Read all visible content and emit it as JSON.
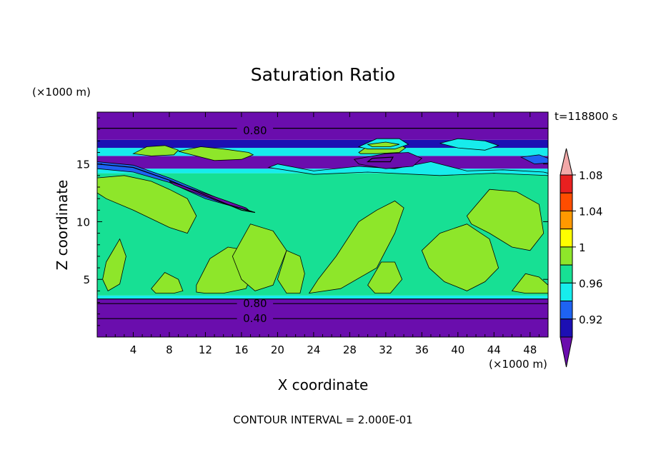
{
  "chart_data": {
    "type": "heatmap",
    "title": "Saturation Ratio",
    "time_label": "t=118800 s",
    "xlabel": "X coordinate",
    "ylabel": "Z coordinate",
    "x_unit": "(×1000 m)",
    "y_unit": "(×1000 m)",
    "xlim": [
      0,
      50
    ],
    "ylim": [
      0,
      19.5
    ],
    "x_ticks": [
      4,
      8,
      12,
      16,
      20,
      24,
      28,
      32,
      36,
      40,
      44,
      48
    ],
    "y_ticks": [
      5,
      10,
      15
    ],
    "contour_labels": [
      {
        "text": "0.80",
        "x": 17.5,
        "z": 17.9
      },
      {
        "text": "0.80",
        "x": 17.5,
        "z": 2.9
      },
      {
        "text": "0.40",
        "x": 17.5,
        "z": 1.6
      }
    ],
    "footer": "CONTOUR INTERVAL = 2.000E-01",
    "colorbar": {
      "labels": [
        "1.08",
        "1.04",
        "1",
        "0.96",
        "0.92"
      ],
      "levels": [
        0.9,
        0.92,
        0.94,
        0.96,
        0.98,
        1.0,
        1.02,
        1.04,
        1.06,
        1.08,
        1.1
      ],
      "colors": [
        "#6a0dad",
        "#1c0fb3",
        "#1e63f2",
        "#17ecec",
        "#17e094",
        "#8ee62a",
        "#ffff00",
        "#ff9900",
        "#ff4d00",
        "#e82020",
        "#f2a8a8"
      ]
    },
    "bands": [
      {
        "z0": 0.0,
        "z1": 3.3,
        "level": "< 0.90",
        "color": "#6a0dad"
      },
      {
        "z0": 3.3,
        "z1": 3.6,
        "level": "0.96",
        "color": "#17ecec"
      },
      {
        "z0": 3.6,
        "z1": 14.2,
        "level": "0.98",
        "color": "#17e094"
      },
      {
        "z0": 14.2,
        "z1": 14.6,
        "level": "0.96",
        "color": "#17ecec"
      },
      {
        "z0": 14.6,
        "z1": 15.7,
        "level": "< 0.90",
        "color": "#6a0dad"
      },
      {
        "z0": 15.7,
        "z1": 16.4,
        "level": "0.96",
        "color": "#17ecec"
      },
      {
        "z0": 16.4,
        "z1": 17.1,
        "level": "0.92",
        "color": "#1c0fb3"
      },
      {
        "z0": 17.1,
        "z1": 19.5,
        "level": "< 0.90",
        "color": "#6a0dad"
      }
    ],
    "patches": [
      {
        "x": [
          0,
          3,
          6,
          8,
          10,
          11,
          10,
          8,
          4,
          1,
          0
        ],
        "z": [
          13.8,
          14.0,
          13.5,
          12.8,
          12.0,
          10.5,
          9.0,
          9.5,
          11.0,
          12.0,
          12.5
        ],
        "color": "#8ee62a"
      },
      {
        "x": [
          23.5,
          27,
          31,
          33,
          34,
          33,
          31,
          29,
          26.5,
          24.5
        ],
        "z": [
          3.8,
          4.2,
          6.0,
          9.0,
          11.2,
          11.8,
          11.0,
          10.0,
          7.0,
          5.0
        ],
        "color": "#8ee62a"
      },
      {
        "x": [
          36,
          38,
          41,
          43.5,
          44.5,
          43,
          41,
          38.5,
          36.8
        ],
        "z": [
          7.5,
          9.0,
          9.8,
          8.5,
          6.0,
          4.8,
          4.0,
          4.8,
          6.0
        ],
        "color": "#8ee62a"
      },
      {
        "x": [
          41,
          43.5,
          46.5,
          49,
          49.5,
          48,
          46,
          43.5,
          41.5
        ],
        "z": [
          10.5,
          12.8,
          12.6,
          11.5,
          9.0,
          7.5,
          7.8,
          9.0,
          9.8
        ],
        "color": "#8ee62a"
      },
      {
        "x": [
          1,
          2.5,
          3.2,
          2.5,
          1.2,
          0.6
        ],
        "z": [
          6.5,
          8.5,
          7.0,
          4.6,
          4.0,
          5.0
        ],
        "color": "#8ee62a"
      },
      {
        "x": [
          6,
          7.5,
          9,
          9.5,
          8.5,
          6.5
        ],
        "z": [
          4.2,
          5.6,
          5.0,
          4.0,
          3.8,
          3.8
        ],
        "color": "#8ee62a"
      },
      {
        "x": [
          11,
          12.5,
          14.5,
          16,
          17.5,
          16.5,
          14,
          12,
          11
        ],
        "z": [
          4.5,
          6.8,
          7.8,
          7.6,
          6.0,
          4.2,
          3.8,
          3.8,
          3.9
        ],
        "color": "#8ee62a"
      },
      {
        "x": [
          15,
          17,
          19.5,
          21,
          19.5,
          17.5,
          16
        ],
        "z": [
          7.0,
          9.8,
          9.2,
          7.5,
          4.5,
          4.0,
          5.0
        ],
        "color": "#8ee62a"
      },
      {
        "x": [
          20,
          21,
          22.5,
          23,
          22.5,
          21
        ],
        "z": [
          5.0,
          7.5,
          7.0,
          5.5,
          3.8,
          3.8
        ],
        "color": "#8ee62a"
      },
      {
        "x": [
          30,
          31.5,
          33,
          33.8,
          32.5,
          30.8
        ],
        "z": [
          4.5,
          6.5,
          6.5,
          5.0,
          3.8,
          3.8
        ],
        "color": "#8ee62a"
      },
      {
        "x": [
          46,
          47.5,
          49,
          50,
          50,
          47.5
        ],
        "z": [
          4.0,
          5.5,
          5.2,
          4.5,
          3.8,
          3.8
        ],
        "color": "#8ee62a"
      },
      {
        "x": [
          11,
          13,
          16,
          17.3,
          16.8,
          14,
          11.5,
          9
        ],
        "z": [
          15.7,
          15.3,
          15.4,
          15.8,
          16.0,
          16.3,
          16.5,
          16.1
        ],
        "color": "#8ee62a"
      },
      {
        "x": [
          29,
          30.5,
          33,
          34.2,
          33.5,
          31,
          29.2
        ],
        "z": [
          16.0,
          16.8,
          16.9,
          16.4,
          16.0,
          15.9,
          15.9
        ],
        "color": "#8ee62a"
      },
      {
        "x": [
          4,
          5.5,
          7.5,
          9,
          8.5,
          6
        ],
        "z": [
          15.9,
          16.5,
          16.6,
          16.2,
          15.8,
          15.7
        ],
        "color": "#8ee62a"
      },
      {
        "x": [
          0,
          4,
          8,
          12,
          16,
          17.5,
          16.5,
          12,
          8,
          4,
          0
        ],
        "z": [
          15.2,
          14.9,
          13.8,
          12.5,
          11.2,
          10.8,
          11.0,
          12.0,
          13.4,
          14.3,
          14.6
        ],
        "color": "#1e63f2"
      },
      {
        "x": [
          8,
          11,
          14,
          16.5,
          16.8,
          14,
          10.5,
          8.5
        ],
        "z": [
          13.5,
          12.7,
          11.9,
          11.2,
          11.0,
          11.6,
          12.6,
          13.2
        ],
        "color": "#6a0dad"
      },
      {
        "x": [
          20,
          24,
          29,
          33,
          37,
          41,
          45,
          49.5,
          50,
          50,
          44,
          38,
          30,
          24,
          19
        ],
        "z": [
          15.0,
          14.4,
          14.8,
          14.6,
          15.2,
          14.4,
          14.5,
          14.3,
          14.2,
          14.0,
          14.2,
          14.0,
          14.3,
          14.1,
          14.7
        ],
        "color": "#17ecec"
      },
      {
        "x": [
          29,
          31,
          33.5,
          34.5,
          33,
          30
        ],
        "z": [
          16.5,
          17.2,
          17.2,
          16.7,
          16.3,
          16.3
        ],
        "color": "#17ecec"
      },
      {
        "x": [
          30,
          32,
          33.5,
          32.5,
          30.5
        ],
        "z": [
          16.7,
          16.9,
          16.7,
          16.5,
          16.5
        ],
        "color": "#8ee62a"
      },
      {
        "x": [
          28.5,
          32,
          34.5,
          36,
          35,
          32,
          29
        ],
        "z": [
          15.4,
          15.9,
          16.0,
          15.5,
          14.8,
          14.6,
          15.0
        ],
        "color": "#6a0dad"
      },
      {
        "x": [
          38,
          40,
          43,
          44.5,
          43,
          40
        ],
        "z": [
          16.8,
          17.2,
          17.0,
          16.6,
          16.2,
          16.4
        ],
        "color": "#17ecec"
      },
      {
        "x": [
          47,
          49,
          50,
          50,
          48.5
        ],
        "z": [
          15.6,
          15.8,
          15.5,
          15.1,
          15.0
        ],
        "color": "#1e63f2"
      }
    ],
    "contour_lines": [
      {
        "x": [
          0,
          15.5
        ],
        "z": [
          18.1,
          18.1
        ]
      },
      {
        "x": [
          19.5,
          50
        ],
        "z": [
          18.1,
          18.1
        ]
      },
      {
        "x": [
          0,
          15.5
        ],
        "z": [
          2.9,
          2.9
        ]
      },
      {
        "x": [
          19.5,
          50
        ],
        "z": [
          2.9,
          2.9
        ]
      },
      {
        "x": [
          0,
          15.5
        ],
        "z": [
          1.6,
          1.6
        ]
      },
      {
        "x": [
          19.5,
          50
        ],
        "z": [
          1.6,
          1.6
        ]
      },
      {
        "x": [
          0,
          50
        ],
        "z": [
          3.3,
          3.3
        ]
      },
      {
        "x": [
          30.5,
          32.8,
          32.5,
          30,
          30.5
        ],
        "z": [
          15.5,
          15.6,
          15.2,
          15.2,
          15.5
        ]
      },
      {
        "x": [
          0,
          4,
          8,
          12,
          16,
          17.5
        ],
        "z": [
          15.0,
          14.7,
          13.6,
          12.3,
          11.0,
          10.8
        ]
      }
    ]
  }
}
